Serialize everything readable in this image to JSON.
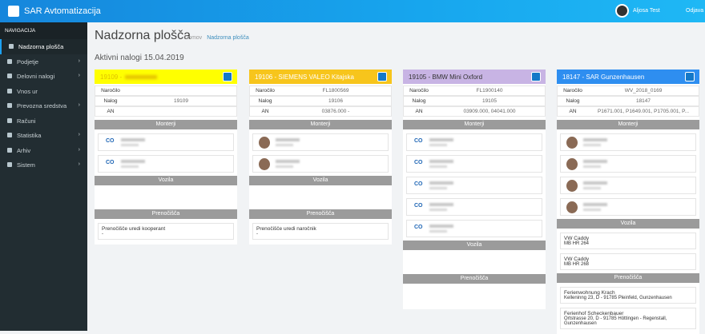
{
  "topbar": {
    "brand": "SAR Avtomatizacija",
    "user": "Aljosa Test",
    "logout": "Odjava"
  },
  "sidebar": {
    "header": "NAVIGACIJA",
    "items": [
      {
        "label": "Nadzorna plošča",
        "active": true
      },
      {
        "label": "Podjetje",
        "submenu": true
      },
      {
        "label": "Delovni nalogi",
        "submenu": true
      },
      {
        "label": "Vnos ur"
      },
      {
        "label": "Prevozna sredstva",
        "submenu": true
      },
      {
        "label": "Računi"
      },
      {
        "label": "Statistika",
        "submenu": true
      },
      {
        "label": "Arhiv",
        "submenu": true
      },
      {
        "label": "Sistem",
        "submenu": true
      }
    ]
  },
  "page": {
    "title": "Nadzorna plošča",
    "breadcrumb": [
      "Domov",
      "Nadzorna plošča"
    ],
    "subtitle": "Aktivni nalogi 15.04.2019"
  },
  "labels": {
    "narocilo": "Naročilo",
    "nalog": "Nalog",
    "an": "AN",
    "monterji": "Monterji",
    "vozila": "Vozila",
    "prenocisca": "Prenočišča"
  },
  "cards": [
    {
      "title": "19109 -",
      "title_blurred": true,
      "color": "#ffff00",
      "text_color": "#e0c000",
      "nalog": "19109",
      "monterji": [
        {
          "initials": "CO"
        },
        {
          "initials": "CO"
        }
      ],
      "prenocisca": [
        {
          "name": "Prenočišče uredi kooperant",
          "address": "-"
        }
      ]
    },
    {
      "title": "19106 - SIEMENS VALEO Kitajska",
      "color": "#f7c51c",
      "text_color": "#ffffff",
      "narocilo": "FL1800569",
      "nalog": "19106",
      "an": "03876.000 -",
      "monterji": [
        {
          "avatar": "photo"
        },
        {
          "avatar": "photo"
        }
      ],
      "prenocisca": [
        {
          "name": "Prenočišče uredi naročnik",
          "address": "-"
        }
      ]
    },
    {
      "title": "19105 - BMW Mini Oxford",
      "color": "#c8b4e4",
      "text_color": "#333333",
      "narocilo": "FL1900140",
      "nalog": "19105",
      "an": "03909.000, 04041.000",
      "monterji": [
        {
          "initials": "CO"
        },
        {
          "initials": "CO"
        },
        {
          "initials": "CO"
        },
        {
          "initials": "CO"
        },
        {
          "initials": "CO"
        }
      ]
    },
    {
      "title": "18147 - SAR Gunzenhausen",
      "color": "#2e8ef0",
      "text_color": "#ffffff",
      "narocilo": "WV_2018_0169",
      "nalog": "18147",
      "an": "P1671.001, P1649.001, P1705.001, P...",
      "monterji": [
        {
          "avatar": "photo"
        },
        {
          "avatar": "photo"
        },
        {
          "avatar": "photo"
        },
        {
          "avatar": "photo"
        }
      ],
      "vozila": [
        {
          "name": "VW Caddy",
          "plate": "MB HR 264"
        },
        {
          "name": "VW Caddy",
          "plate": "MB HR 268"
        }
      ],
      "prenocisca": [
        {
          "name": "Ferienwohnung Krach",
          "address": "Kelleninng 23, D - 91785 Pleinfeld, Gunzenhausen"
        },
        {
          "name": "Ferienhof Scheckenbauer",
          "address": "Ortstrasse 20, D - 91785 Höttingen - Regenstall, Gunzenhausen"
        }
      ]
    }
  ]
}
